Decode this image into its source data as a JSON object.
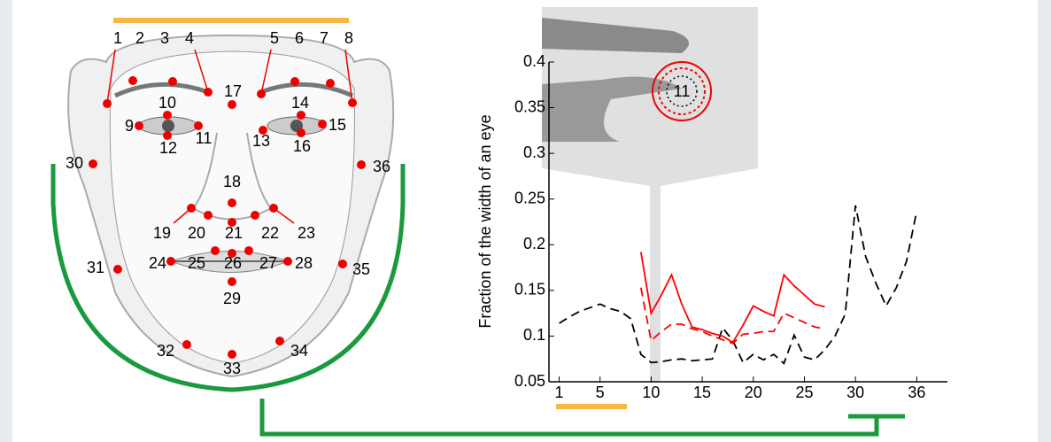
{
  "chart_data": {
    "type": "line",
    "y_label": "Fraction of the width of an eye",
    "inset_label": "11",
    "x": [
      1,
      2,
      3,
      4,
      5,
      6,
      7,
      8,
      9,
      10,
      11,
      12,
      13,
      14,
      15,
      16,
      17,
      18,
      19,
      20,
      21,
      22,
      23,
      24,
      25,
      26,
      27,
      28,
      29,
      30,
      31,
      32,
      33,
      34,
      35,
      36
    ],
    "series": [
      {
        "color": "#000000",
        "dash": true,
        "values": [
          0.114,
          0.121,
          0.127,
          0.131,
          0.135,
          0.13,
          0.127,
          0.119,
          0.08,
          0.071,
          0.072,
          0.074,
          0.075,
          0.073,
          0.074,
          0.075,
          0.109,
          0.095,
          0.071,
          0.08,
          0.074,
          0.08,
          0.07,
          0.101,
          0.077,
          0.074,
          0.085,
          0.1,
          0.124,
          0.243,
          0.187,
          0.158,
          0.133,
          0.153,
          0.182,
          0.237
        ]
      },
      {
        "color": "#ff0000",
        "dash": false,
        "values": [
          null,
          null,
          null,
          null,
          null,
          null,
          null,
          null,
          0.192,
          0.125,
          0.145,
          0.167,
          0.135,
          0.11,
          0.107,
          0.103,
          0.1,
          0.093,
          0.112,
          0.133,
          0.127,
          0.122,
          0.167,
          0.155,
          0.145,
          0.135,
          0.132,
          null,
          null,
          null,
          null,
          null,
          null,
          null,
          null,
          null
        ]
      },
      {
        "color": "#ff0000",
        "dash": true,
        "values": [
          null,
          null,
          null,
          null,
          null,
          null,
          null,
          null,
          0.153,
          0.095,
          0.105,
          0.113,
          0.113,
          0.108,
          0.105,
          0.1,
          0.096,
          0.092,
          0.102,
          0.103,
          0.105,
          0.105,
          0.125,
          0.12,
          0.115,
          0.11,
          0.108,
          null,
          null,
          null,
          null,
          null,
          null,
          null,
          null,
          null
        ]
      }
    ],
    "xlim": [
      0,
      39
    ],
    "xticks": [
      1,
      5,
      10,
      15,
      20,
      25,
      30,
      36
    ],
    "ylim": [
      0.05,
      0.4
    ],
    "yticks": [
      0.05,
      0.1,
      0.15,
      0.2,
      0.25,
      0.3,
      0.35,
      0.4
    ]
  },
  "diagram": {
    "landmarks": [
      "1",
      "2",
      "3",
      "4",
      "5",
      "6",
      "7",
      "8",
      "9",
      "10",
      "11",
      "12",
      "13",
      "14",
      "15",
      "16",
      "17",
      "18",
      "19",
      "20",
      "21",
      "22",
      "23",
      "24",
      "25",
      "26",
      "27",
      "28",
      "29",
      "30",
      "31",
      "32",
      "33",
      "34",
      "35",
      "36"
    ]
  }
}
